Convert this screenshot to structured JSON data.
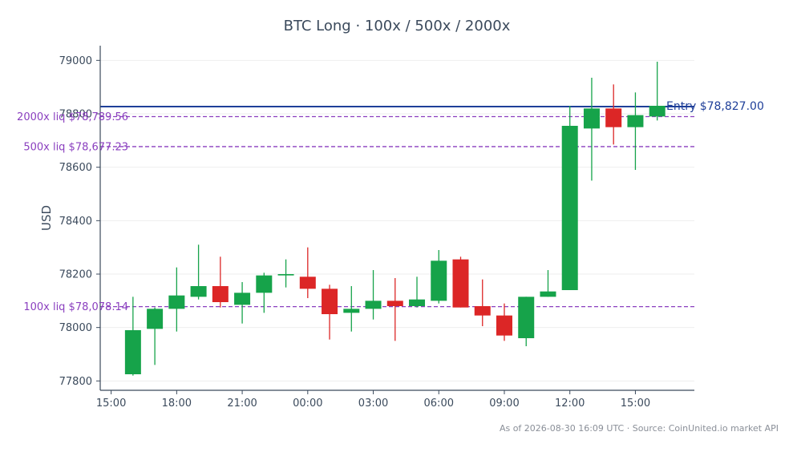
{
  "chart_data": {
    "type": "candlestick",
    "title": "BTC Long · 100x / 500x / 2000x",
    "ylabel": "USD",
    "xlabel": "",
    "ylim": [
      77765,
      79055
    ],
    "yticks": [
      77800,
      78000,
      78200,
      78400,
      78600,
      78800,
      79000
    ],
    "ytick_labels": [
      "77800",
      "78000",
      "78200",
      "78400",
      "78600",
      "78800",
      "79000"
    ],
    "xticks": [
      {
        "hour": 15,
        "label": "15:00"
      },
      {
        "hour": 18,
        "label": "18:00"
      },
      {
        "hour": 21,
        "label": "21:00"
      },
      {
        "hour": 24,
        "label": "00:00"
      },
      {
        "hour": 27,
        "label": "03:00"
      },
      {
        "hour": 30,
        "label": "06:00"
      },
      {
        "hour": 33,
        "label": "09:00"
      },
      {
        "hour": 36,
        "label": "12:00"
      },
      {
        "hour": 39,
        "label": "15:00"
      }
    ],
    "xlim": [
      14.5,
      41.7
    ],
    "grid": true,
    "candles": [
      {
        "hour": 16,
        "open": 77825,
        "high": 78115,
        "low": 77820,
        "close": 77990
      },
      {
        "hour": 17,
        "open": 77995,
        "high": 78075,
        "low": 77860,
        "close": 78070
      },
      {
        "hour": 18,
        "open": 78070,
        "high": 78225,
        "low": 77985,
        "close": 78120
      },
      {
        "hour": 19,
        "open": 78115,
        "high": 78310,
        "low": 78105,
        "close": 78155
      },
      {
        "hour": 20,
        "open": 78155,
        "high": 78265,
        "low": 78075,
        "close": 78095
      },
      {
        "hour": 21,
        "open": 78085,
        "high": 78170,
        "low": 78015,
        "close": 78130
      },
      {
        "hour": 22,
        "open": 78130,
        "high": 78205,
        "low": 78055,
        "close": 78195
      },
      {
        "hour": 23,
        "open": 78195,
        "high": 78255,
        "low": 78150,
        "close": 78200
      },
      {
        "hour": 24,
        "open": 78190,
        "high": 78300,
        "low": 78110,
        "close": 78145
      },
      {
        "hour": 25,
        "open": 78145,
        "high": 78160,
        "low": 77955,
        "close": 78050
      },
      {
        "hour": 26,
        "open": 78055,
        "high": 78155,
        "low": 77985,
        "close": 78070
      },
      {
        "hour": 27,
        "open": 78070,
        "high": 78215,
        "low": 78030,
        "close": 78100
      },
      {
        "hour": 28,
        "open": 78100,
        "high": 78185,
        "low": 77950,
        "close": 78080
      },
      {
        "hour": 29,
        "open": 78080,
        "high": 78190,
        "low": 78075,
        "close": 78105
      },
      {
        "hour": 30,
        "open": 78100,
        "high": 78290,
        "low": 78090,
        "close": 78250
      },
      {
        "hour": 31,
        "open": 78255,
        "high": 78265,
        "low": 78075,
        "close": 78075
      },
      {
        "hour": 32,
        "open": 78080,
        "high": 78180,
        "low": 78005,
        "close": 78045
      },
      {
        "hour": 33,
        "open": 78045,
        "high": 78090,
        "low": 77950,
        "close": 77970
      },
      {
        "hour": 34,
        "open": 77960,
        "high": 78115,
        "low": 77930,
        "close": 78115
      },
      {
        "hour": 35,
        "open": 78115,
        "high": 78215,
        "low": 78115,
        "close": 78135
      },
      {
        "hour": 36,
        "open": 78140,
        "high": 78830,
        "low": 78140,
        "close": 78755
      },
      {
        "hour": 37,
        "open": 78745,
        "high": 78935,
        "low": 78550,
        "close": 78820
      },
      {
        "hour": 38,
        "open": 78820,
        "high": 78910,
        "low": 78685,
        "close": 78750
      },
      {
        "hour": 39,
        "open": 78750,
        "high": 78880,
        "low": 78590,
        "close": 78795
      },
      {
        "hour": 40,
        "open": 78790,
        "high": 78995,
        "low": 78775,
        "close": 78830
      }
    ],
    "hlines": [
      {
        "value": 78827.0,
        "label": "Entry $78,827.00",
        "color": "#1f3f99",
        "style": "solid",
        "label_side": "right"
      },
      {
        "value": 78789.56,
        "label": "2000x liq $78,789.56",
        "color": "#8a3fbf",
        "style": "dashed",
        "label_side": "left"
      },
      {
        "value": 78677.23,
        "label": "500x liq $78,677.23",
        "color": "#8a3fbf",
        "style": "dashed",
        "label_side": "left"
      },
      {
        "value": 78078.14,
        "label": "100x liq $78,078.14",
        "color": "#8a3fbf",
        "style": "dashed",
        "label_side": "left"
      }
    ],
    "colors": {
      "up": "#16a34a",
      "down": "#dc2626",
      "axis": "#3b4a5c",
      "grid": "#eeeeee"
    }
  },
  "footer": "As of 2026-08-30 16:09 UTC · Source: CoinUnited.io market API"
}
